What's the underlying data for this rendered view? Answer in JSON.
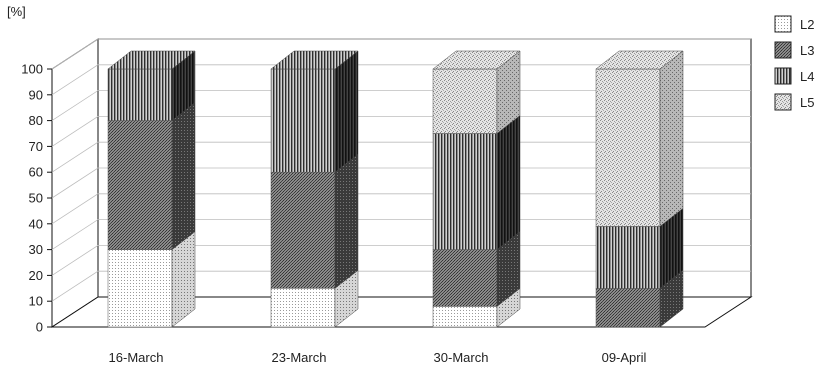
{
  "chart_data": {
    "type": "bar",
    "stacked": true,
    "three_d": true,
    "title": "",
    "xlabel": "",
    "ylabel": "[%]",
    "ylim": [
      0,
      100
    ],
    "yticks": [
      0,
      10,
      20,
      30,
      40,
      50,
      60,
      70,
      80,
      90,
      100
    ],
    "grid": true,
    "legend_position": "right",
    "categories": [
      "16-March",
      "23-March",
      "30-March",
      "09-April"
    ],
    "series": [
      {
        "name": "L2",
        "values": [
          30,
          15,
          8,
          0
        ],
        "pattern": "dots",
        "color": "#f2f2f2"
      },
      {
        "name": "L3",
        "values": [
          50,
          45,
          22,
          15
        ],
        "pattern": "crosshatch",
        "color": "#6a6a6a"
      },
      {
        "name": "L4",
        "values": [
          20,
          40,
          45,
          24
        ],
        "pattern": "vertical-lines",
        "color": "#555555"
      },
      {
        "name": "L5",
        "values": [
          0,
          0,
          25,
          61
        ],
        "pattern": "fine-grain",
        "color": "#cfcfcf"
      }
    ]
  }
}
